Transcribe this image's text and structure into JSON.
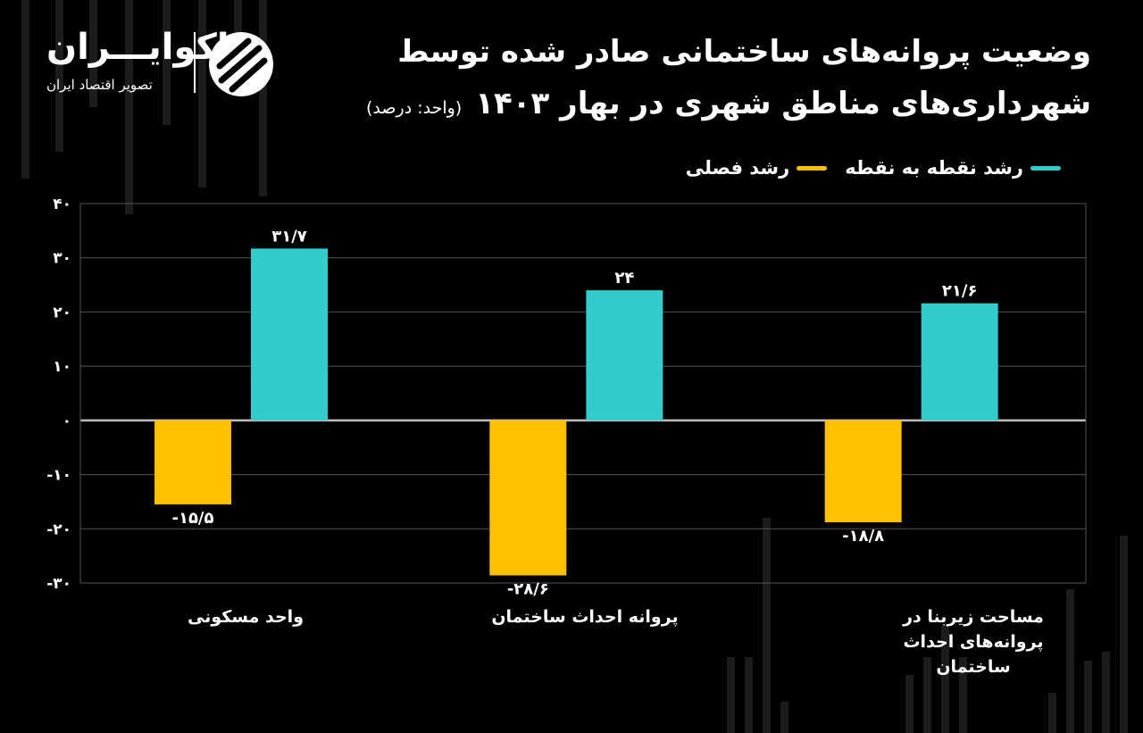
{
  "header": {
    "title_line1": "وضعیت پروانه‌های ساختمانی صادر شده توسط",
    "title_line2": "شهرداری‌های مناطق شهری در بهار ۱۴۰۳",
    "unit": "(واحد: درصد)"
  },
  "logo": {
    "name": "اکوایـــران",
    "subtitle": "تصویر اقتصاد ایران"
  },
  "colors": {
    "point_to_point": "#33CCCC",
    "seasonal": "#FFC000",
    "background": "#000000"
  },
  "chart_data": {
    "type": "bar",
    "categories": [
      "واحد مسکونی",
      "پروانه احداث ساختمان",
      "مساحت زیربنا در پروانه‌های احداث ساختمان"
    ],
    "series": [
      {
        "name": "رشد فصلی",
        "values": [
          -15.5,
          -28.6,
          -18.8
        ],
        "labels": [
          "-۱۵/۵",
          "-۲۸/۶",
          "-۱۸/۸"
        ],
        "color": "#FFC000"
      },
      {
        "name": "رشد نقطه به نقطه",
        "values": [
          31.7,
          24,
          21.6
        ],
        "labels": [
          "۳۱/۷",
          "۲۴",
          "۲۱/۶"
        ],
        "color": "#33CCCC"
      }
    ],
    "ylim": [
      -30,
      40
    ],
    "yticks": [
      40,
      30,
      20,
      10,
      0,
      -10,
      -20,
      -30
    ],
    "ytick_labels": [
      "۴۰",
      "۳۰",
      "۲۰",
      "۱۰",
      "۰",
      "-۱۰",
      "-۲۰",
      "-۳۰"
    ],
    "grid": true,
    "legend_position": "top-right"
  }
}
